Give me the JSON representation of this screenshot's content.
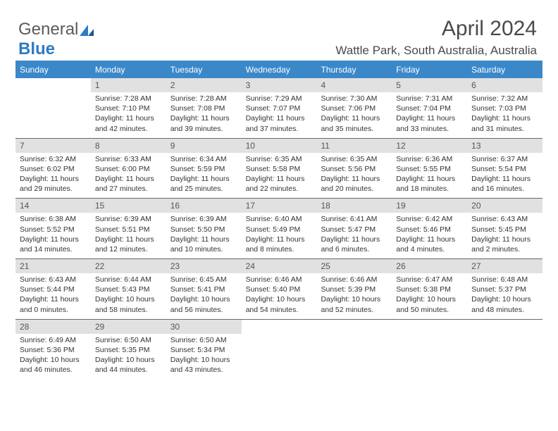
{
  "brand": {
    "part1": "General",
    "part2": "Blue"
  },
  "title": "April 2024",
  "location": "Wattle Park, South Australia, Australia",
  "colors": {
    "header_bg": "#3b88c9",
    "header_text": "#ffffff",
    "daynum_bg": "#e1e1e1",
    "body_text": "#333333",
    "rule": "#6a6a6a",
    "logo_gray": "#5a5a5a",
    "logo_blue": "#2d7bc4",
    "page_bg": "#ffffff"
  },
  "typography": {
    "title_fontsize": 30,
    "location_fontsize": 17,
    "header_fontsize": 12,
    "daynum_fontsize": 12,
    "detail_fontsize": 10.5
  },
  "dayHeaders": [
    "Sunday",
    "Monday",
    "Tuesday",
    "Wednesday",
    "Thursday",
    "Friday",
    "Saturday"
  ],
  "weeks": [
    [
      {
        "n": "",
        "sr": "",
        "ss": "",
        "dl": ""
      },
      {
        "n": "1",
        "sr": "7:28 AM",
        "ss": "7:10 PM",
        "dl": "11 hours and 42 minutes."
      },
      {
        "n": "2",
        "sr": "7:28 AM",
        "ss": "7:08 PM",
        "dl": "11 hours and 39 minutes."
      },
      {
        "n": "3",
        "sr": "7:29 AM",
        "ss": "7:07 PM",
        "dl": "11 hours and 37 minutes."
      },
      {
        "n": "4",
        "sr": "7:30 AM",
        "ss": "7:06 PM",
        "dl": "11 hours and 35 minutes."
      },
      {
        "n": "5",
        "sr": "7:31 AM",
        "ss": "7:04 PM",
        "dl": "11 hours and 33 minutes."
      },
      {
        "n": "6",
        "sr": "7:32 AM",
        "ss": "7:03 PM",
        "dl": "11 hours and 31 minutes."
      }
    ],
    [
      {
        "n": "7",
        "sr": "6:32 AM",
        "ss": "6:02 PM",
        "dl": "11 hours and 29 minutes."
      },
      {
        "n": "8",
        "sr": "6:33 AM",
        "ss": "6:00 PM",
        "dl": "11 hours and 27 minutes."
      },
      {
        "n": "9",
        "sr": "6:34 AM",
        "ss": "5:59 PM",
        "dl": "11 hours and 25 minutes."
      },
      {
        "n": "10",
        "sr": "6:35 AM",
        "ss": "5:58 PM",
        "dl": "11 hours and 22 minutes."
      },
      {
        "n": "11",
        "sr": "6:35 AM",
        "ss": "5:56 PM",
        "dl": "11 hours and 20 minutes."
      },
      {
        "n": "12",
        "sr": "6:36 AM",
        "ss": "5:55 PM",
        "dl": "11 hours and 18 minutes."
      },
      {
        "n": "13",
        "sr": "6:37 AM",
        "ss": "5:54 PM",
        "dl": "11 hours and 16 minutes."
      }
    ],
    [
      {
        "n": "14",
        "sr": "6:38 AM",
        "ss": "5:52 PM",
        "dl": "11 hours and 14 minutes."
      },
      {
        "n": "15",
        "sr": "6:39 AM",
        "ss": "5:51 PM",
        "dl": "11 hours and 12 minutes."
      },
      {
        "n": "16",
        "sr": "6:39 AM",
        "ss": "5:50 PM",
        "dl": "11 hours and 10 minutes."
      },
      {
        "n": "17",
        "sr": "6:40 AM",
        "ss": "5:49 PM",
        "dl": "11 hours and 8 minutes."
      },
      {
        "n": "18",
        "sr": "6:41 AM",
        "ss": "5:47 PM",
        "dl": "11 hours and 6 minutes."
      },
      {
        "n": "19",
        "sr": "6:42 AM",
        "ss": "5:46 PM",
        "dl": "11 hours and 4 minutes."
      },
      {
        "n": "20",
        "sr": "6:43 AM",
        "ss": "5:45 PM",
        "dl": "11 hours and 2 minutes."
      }
    ],
    [
      {
        "n": "21",
        "sr": "6:43 AM",
        "ss": "5:44 PM",
        "dl": "11 hours and 0 minutes."
      },
      {
        "n": "22",
        "sr": "6:44 AM",
        "ss": "5:43 PM",
        "dl": "10 hours and 58 minutes."
      },
      {
        "n": "23",
        "sr": "6:45 AM",
        "ss": "5:41 PM",
        "dl": "10 hours and 56 minutes."
      },
      {
        "n": "24",
        "sr": "6:46 AM",
        "ss": "5:40 PM",
        "dl": "10 hours and 54 minutes."
      },
      {
        "n": "25",
        "sr": "6:46 AM",
        "ss": "5:39 PM",
        "dl": "10 hours and 52 minutes."
      },
      {
        "n": "26",
        "sr": "6:47 AM",
        "ss": "5:38 PM",
        "dl": "10 hours and 50 minutes."
      },
      {
        "n": "27",
        "sr": "6:48 AM",
        "ss": "5:37 PM",
        "dl": "10 hours and 48 minutes."
      }
    ],
    [
      {
        "n": "28",
        "sr": "6:49 AM",
        "ss": "5:36 PM",
        "dl": "10 hours and 46 minutes."
      },
      {
        "n": "29",
        "sr": "6:50 AM",
        "ss": "5:35 PM",
        "dl": "10 hours and 44 minutes."
      },
      {
        "n": "30",
        "sr": "6:50 AM",
        "ss": "5:34 PM",
        "dl": "10 hours and 43 minutes."
      },
      {
        "n": "",
        "sr": "",
        "ss": "",
        "dl": ""
      },
      {
        "n": "",
        "sr": "",
        "ss": "",
        "dl": ""
      },
      {
        "n": "",
        "sr": "",
        "ss": "",
        "dl": ""
      },
      {
        "n": "",
        "sr": "",
        "ss": "",
        "dl": ""
      }
    ]
  ],
  "labels": {
    "sunrise": "Sunrise:",
    "sunset": "Sunset:",
    "daylight": "Daylight:"
  }
}
